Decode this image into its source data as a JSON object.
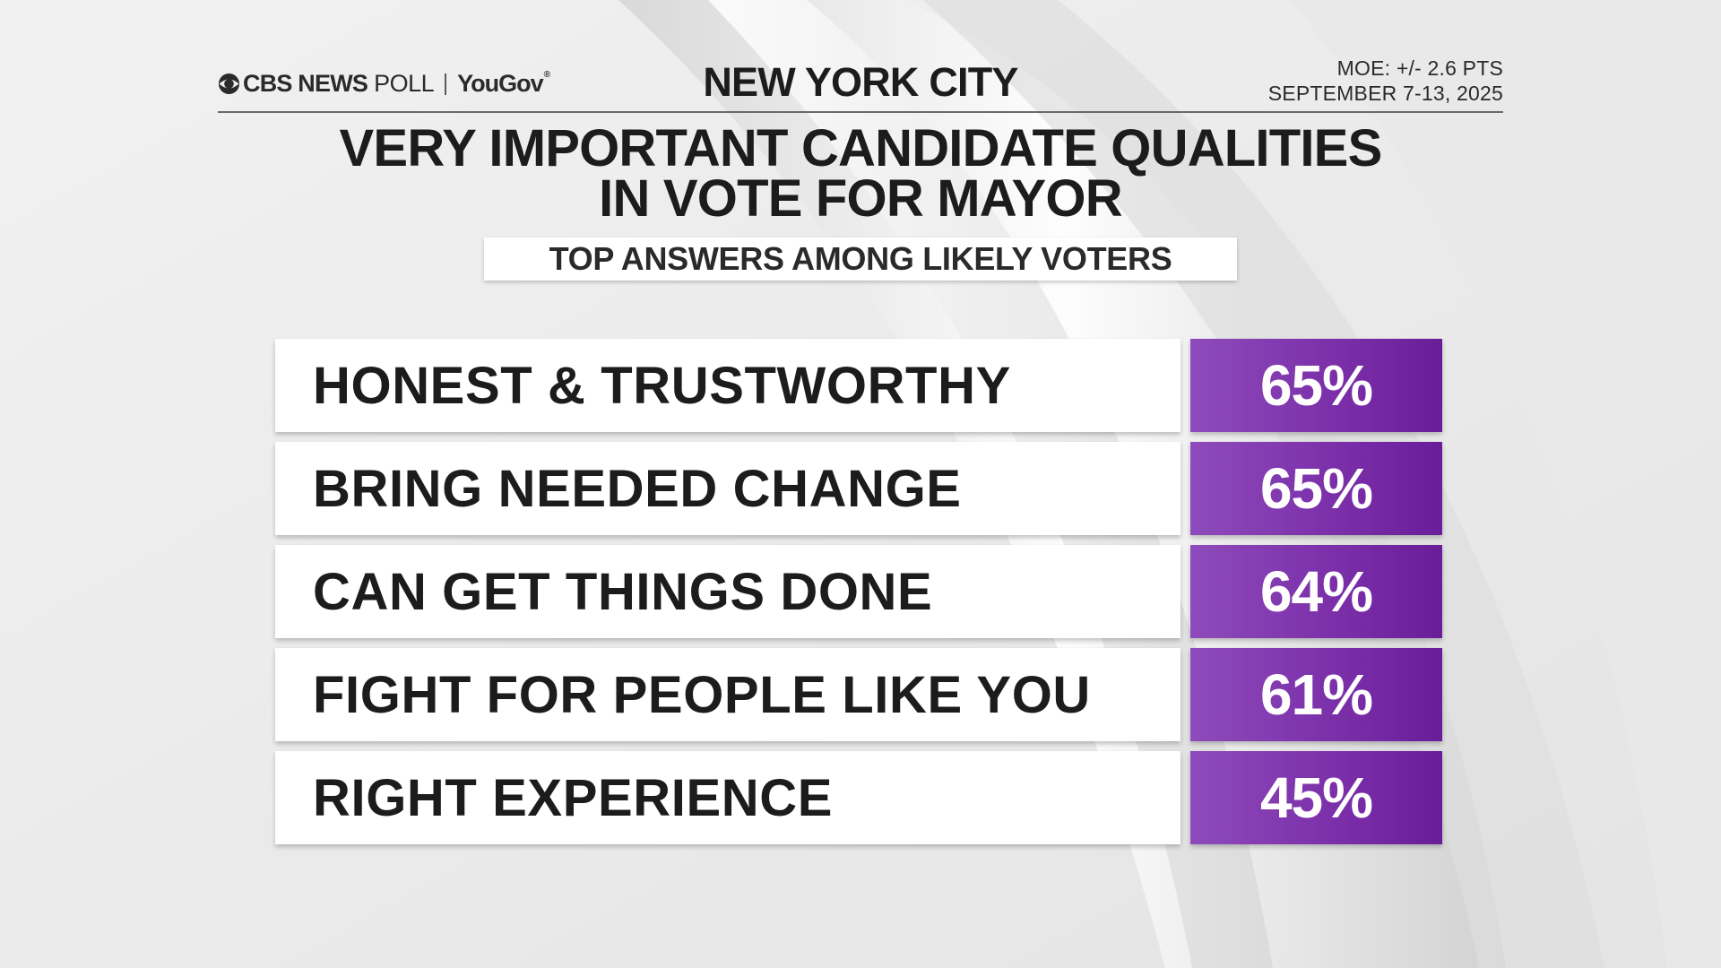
{
  "header": {
    "logo_network": "CBS NEWS",
    "logo_poll": "POLL",
    "logo_partner": "YouGov",
    "location": "NEW YORK CITY",
    "moe": "MOE: +/- 2.6 PTS",
    "dates": "SEPTEMBER 7-13, 2025"
  },
  "title_lines": [
    "VERY IMPORTANT CANDIDATE QUALITIES",
    "IN VOTE FOR MAYOR"
  ],
  "subtitle": "TOP ANSWERS AMONG LIKELY VOTERS",
  "colors": {
    "bar": "#7a2ea8",
    "label_bg": "#ffffff",
    "text": "#1c1c1c"
  },
  "chart_data": {
    "type": "table",
    "title": "VERY IMPORTANT CANDIDATE QUALITIES IN VOTE FOR MAYOR",
    "subtitle": "TOP ANSWERS AMONG LIKELY VOTERS",
    "categories": [
      "HONEST & TRUSTWORTHY",
      "BRING NEEDED CHANGE",
      "CAN GET THINGS DONE",
      "FIGHT FOR PEOPLE LIKE YOU",
      "RIGHT EXPERIENCE"
    ],
    "values": [
      65,
      65,
      64,
      61,
      45
    ],
    "value_labels": [
      "65%",
      "65%",
      "64%",
      "61%",
      "45%"
    ]
  }
}
